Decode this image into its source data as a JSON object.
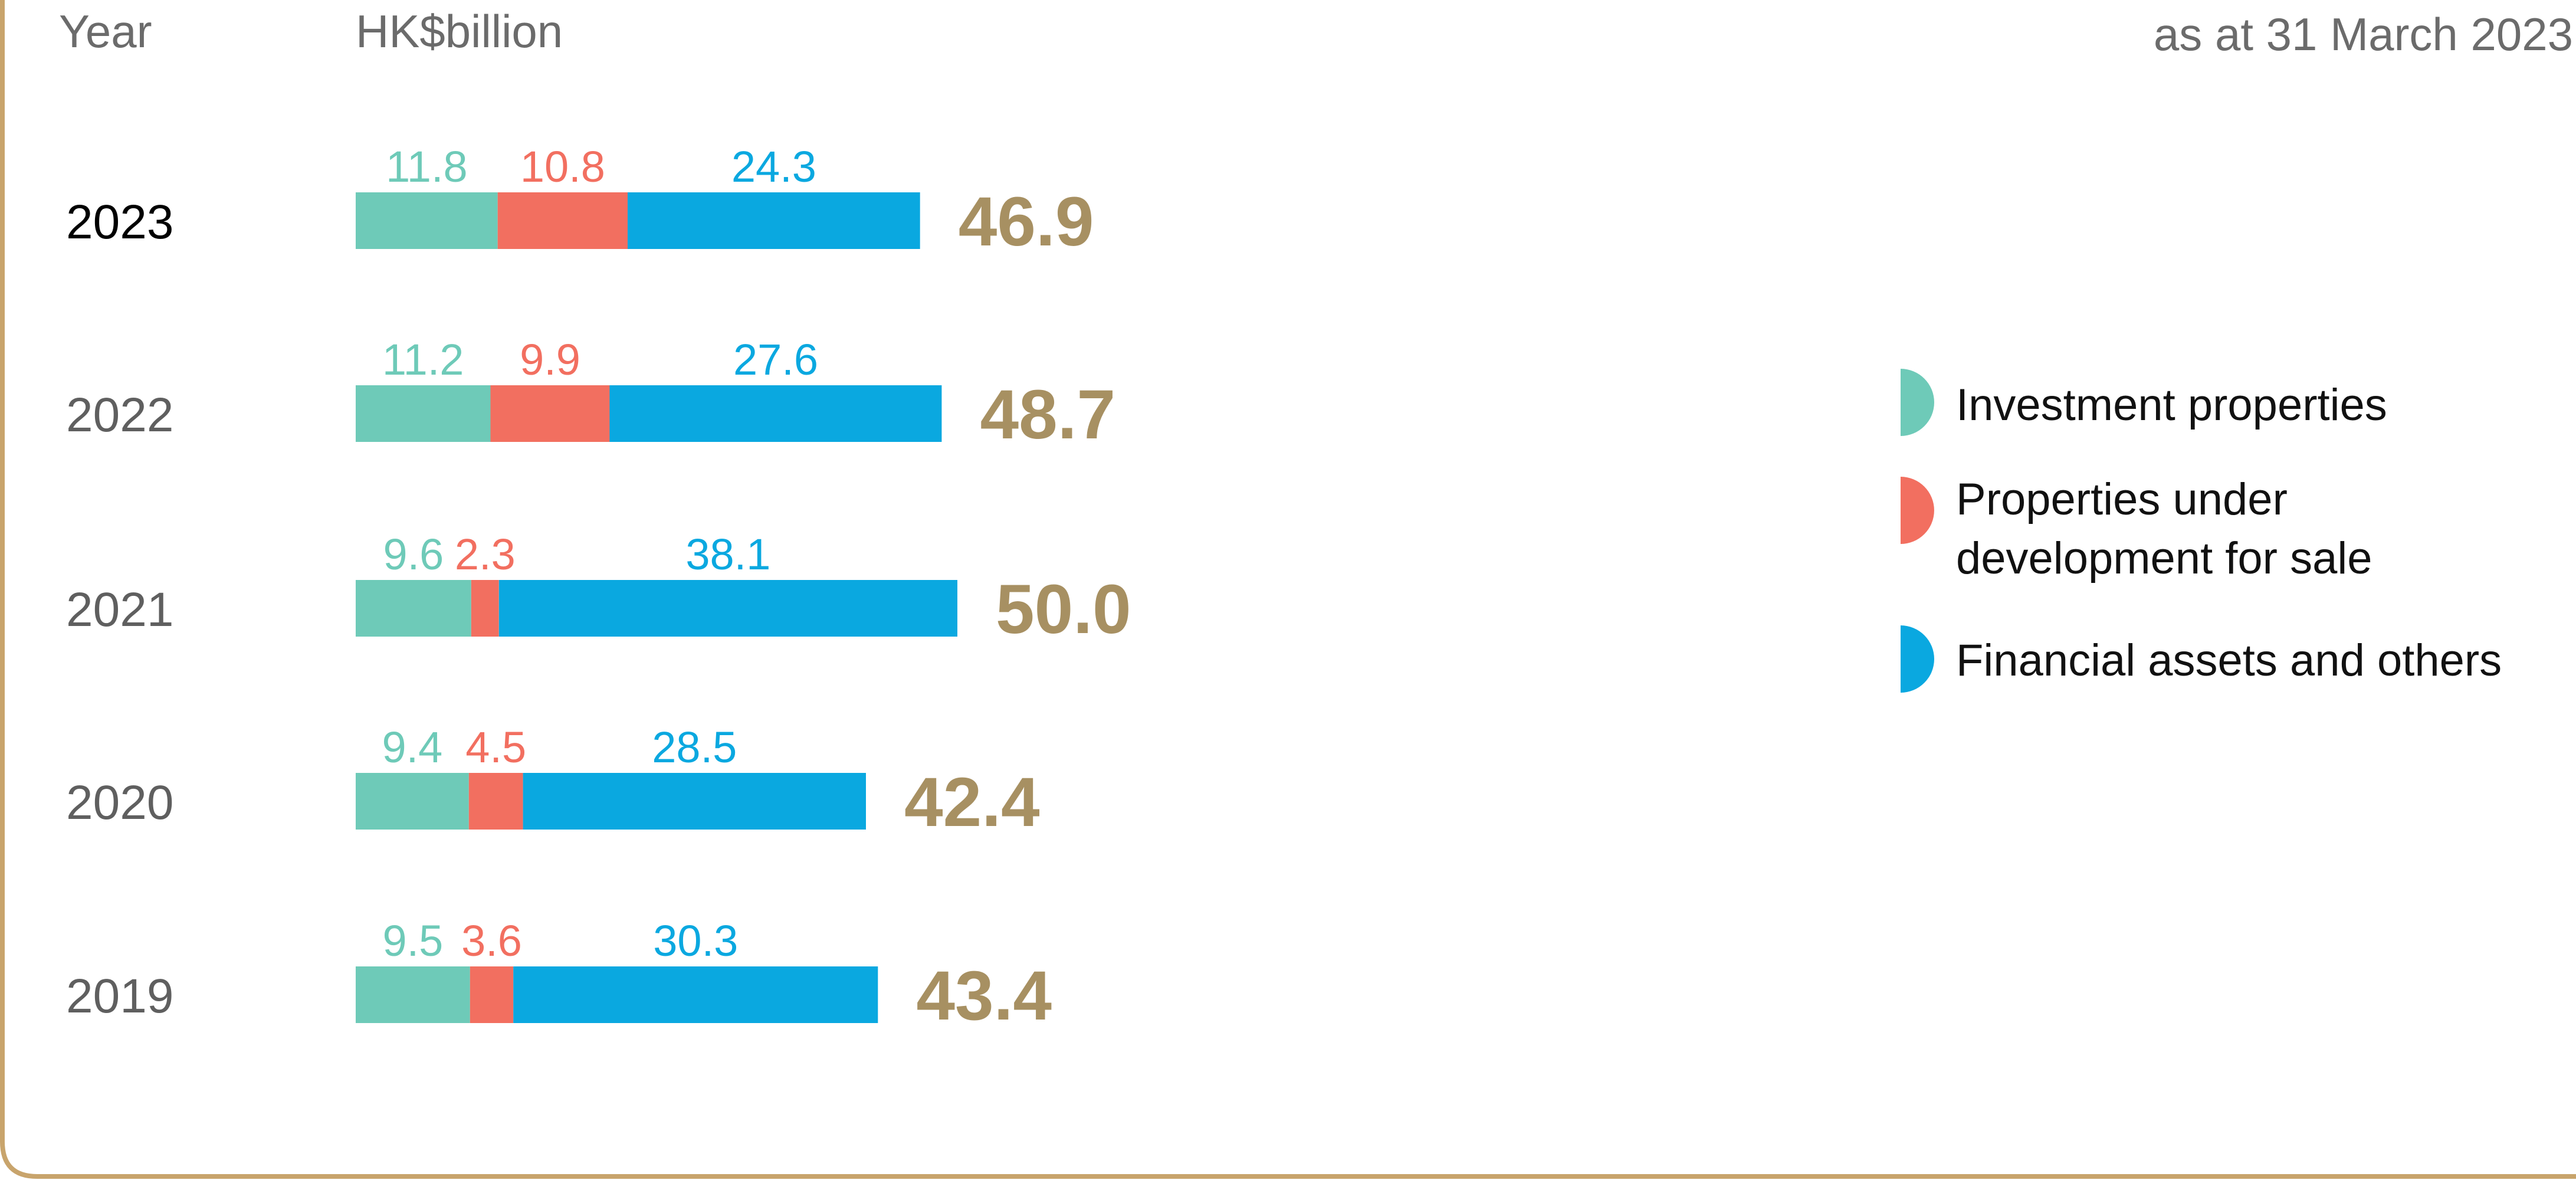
{
  "header": {
    "year_label": "Year",
    "unit_label": "HK$billion",
    "as_at": "as at 31 March 2023"
  },
  "colors": {
    "investment": "#6ECAB8",
    "development": "#F26F60",
    "financial": "#0AA8E0",
    "total": "#A79062",
    "frame": "#C8A46C"
  },
  "chart_data": {
    "type": "bar",
    "orientation": "horizontal",
    "stacked": true,
    "categories": [
      "2023",
      "2022",
      "2021",
      "2020",
      "2019"
    ],
    "series": [
      {
        "name": "Investment properties",
        "values": [
          11.8,
          11.2,
          9.6,
          9.4,
          9.5
        ]
      },
      {
        "name": "Properties under development for sale",
        "values": [
          10.8,
          9.9,
          2.3,
          4.5,
          3.6
        ]
      },
      {
        "name": "Financial assets and others",
        "values": [
          24.3,
          27.6,
          38.1,
          28.5,
          30.3
        ]
      }
    ],
    "totals": [
      "46.9",
      "48.7",
      "50.0",
      "42.4",
      "43.4"
    ],
    "labels": {
      "investment": [
        "11.8",
        "11.2",
        "9.6",
        "9.4",
        "9.5"
      ],
      "development": [
        "10.8",
        "9.9",
        "2.3",
        "4.5",
        "3.6"
      ],
      "financial": [
        "24.3",
        "27.6",
        "38.1",
        "28.5",
        "30.3"
      ]
    },
    "legend": {
      "position": "right",
      "items": [
        {
          "key": "investment",
          "lines": [
            "Investment properties"
          ]
        },
        {
          "key": "development",
          "lines": [
            "Properties under",
            "development for sale"
          ]
        },
        {
          "key": "financial",
          "lines": [
            "Financial assets and others"
          ]
        }
      ]
    },
    "highlight_category": "2023"
  }
}
